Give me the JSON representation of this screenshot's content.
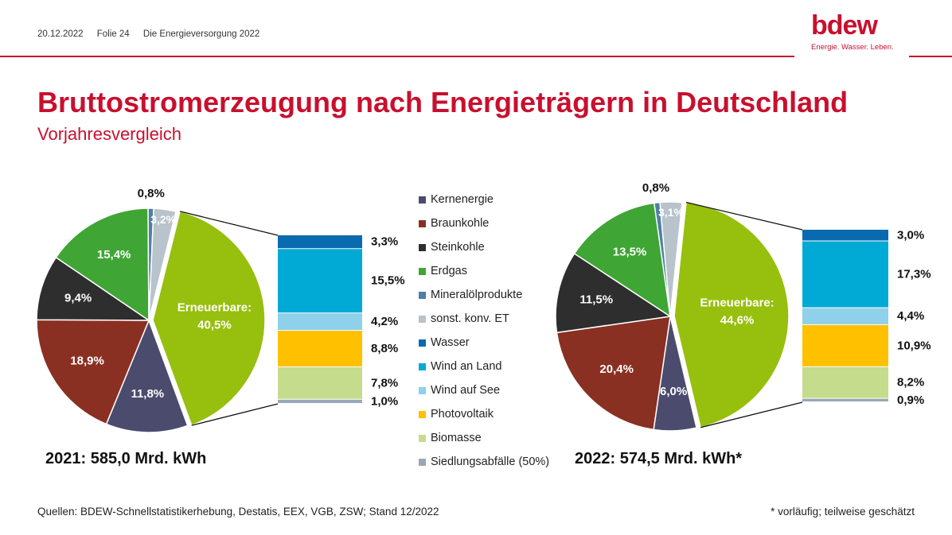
{
  "header": {
    "date": "20.12.2022",
    "slide": "Folie 24",
    "deck": "Die Energieversorgung 2022"
  },
  "logo": {
    "word": "bdew",
    "tagline": "Energie. Wasser. Leben."
  },
  "title": "Bruttostromerzeugung nach Energieträgern in Deutschland",
  "subtitle": "Vorjahresvergleich",
  "colors": {
    "Kernenergie": "#4b4b6e",
    "Braunkohle": "#8a3023",
    "Steinkohle": "#2e2e2e",
    "Erdgas": "#3fa535",
    "Mineralölprodukte": "#4f7fa3",
    "sonst. konv. ET": "#b8c3cc",
    "Wasser": "#0a6aaf",
    "Wind an Land": "#00aad5",
    "Wind auf See": "#8fd0ea",
    "Photovoltaik": "#ffc000",
    "Biomasse": "#c5dc8c",
    "Siedlungsabfälle (50%)": "#9aa7b8",
    "Erneuerbare": "#97bf0d"
  },
  "legend": [
    "Kernenergie",
    "Braunkohle",
    "Steinkohle",
    "Erdgas",
    "Mineralölprodukte",
    "sonst. konv. ET",
    "Wasser",
    "Wind an Land",
    "Wind auf See",
    "Photovoltaik",
    "Biomasse",
    "Siedlungsabfälle (50%)"
  ],
  "chart_data": [
    {
      "type": "pie",
      "title": "2021: 585,0 Mrd. kWh",
      "year": "2021",
      "total": "585,0 Mrd. kWh",
      "slices": [
        {
          "name": "Erneuerbare",
          "value": 40.5,
          "label": "Erneuerbare:",
          "value_label": "40,5%"
        },
        {
          "name": "Kernenergie",
          "value": 11.8,
          "value_label": "11,8%"
        },
        {
          "name": "Braunkohle",
          "value": 18.9,
          "value_label": "18,9%"
        },
        {
          "name": "Steinkohle",
          "value": 9.4,
          "value_label": "9,4%"
        },
        {
          "name": "Erdgas",
          "value": 15.4,
          "value_label": "15,4%"
        },
        {
          "name": "Mineralölprodukte",
          "value": 0.8,
          "value_label": "0,8%"
        },
        {
          "name": "sonst. konv. ET",
          "value": 3.2,
          "value_label": "3,2%"
        }
      ],
      "renewables_breakdown": [
        {
          "name": "Wasser",
          "value": 3.3,
          "value_label": "3,3%"
        },
        {
          "name": "Wind an Land",
          "value": 15.5,
          "value_label": "15,5%"
        },
        {
          "name": "Wind auf See",
          "value": 4.2,
          "value_label": "4,2%"
        },
        {
          "name": "Photovoltaik",
          "value": 8.8,
          "value_label": "8,8%"
        },
        {
          "name": "Biomasse",
          "value": 7.8,
          "value_label": "7,8%"
        },
        {
          "name": "Siedlungsabfälle (50%)",
          "value": 1.0,
          "value_label": "1,0%"
        }
      ]
    },
    {
      "type": "pie",
      "title": "2022: 574,5 Mrd. kWh*",
      "year": "2022",
      "total": "574,5 Mrd. kWh*",
      "slices": [
        {
          "name": "Erneuerbare",
          "value": 44.6,
          "label": "Erneuerbare:",
          "value_label": "44,6%"
        },
        {
          "name": "Kernenergie",
          "value": 6.0,
          "value_label": "6,0%"
        },
        {
          "name": "Braunkohle",
          "value": 20.4,
          "value_label": "20,4%"
        },
        {
          "name": "Steinkohle",
          "value": 11.5,
          "value_label": "11,5%"
        },
        {
          "name": "Erdgas",
          "value": 13.5,
          "value_label": "13,5%"
        },
        {
          "name": "Mineralölprodukte",
          "value": 0.8,
          "value_label": "0,8%"
        },
        {
          "name": "sonst. konv. ET",
          "value": 3.1,
          "value_label": "3,1%"
        }
      ],
      "renewables_breakdown": [
        {
          "name": "Wasser",
          "value": 3.0,
          "value_label": "3,0%"
        },
        {
          "name": "Wind an Land",
          "value": 17.3,
          "value_label": "17,3%"
        },
        {
          "name": "Wind auf See",
          "value": 4.4,
          "value_label": "4,4%"
        },
        {
          "name": "Photovoltaik",
          "value": 10.9,
          "value_label": "10,9%"
        },
        {
          "name": "Biomasse",
          "value": 8.2,
          "value_label": "8,2%"
        },
        {
          "name": "Siedlungsabfälle (50%)",
          "value": 0.9,
          "value_label": "0,9%"
        }
      ]
    }
  ],
  "footer": {
    "sources": "Quellen: BDEW-Schnellstatistikerhebung, Destatis, EEX, VGB, ZSW; Stand 12/2022",
    "note": "* vorläufig; teilweise geschätzt"
  }
}
